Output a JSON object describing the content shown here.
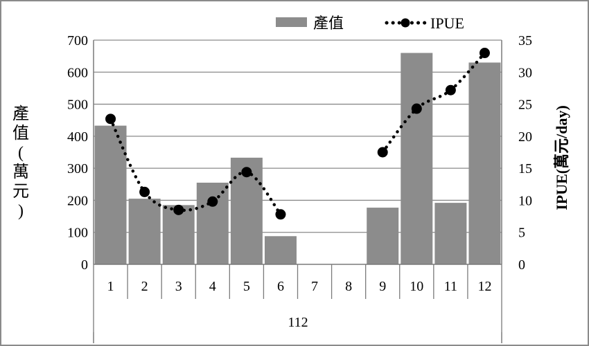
{
  "chart_data": {
    "type": "bar+line",
    "categories": [
      "1",
      "2",
      "3",
      "4",
      "5",
      "6",
      "7",
      "8",
      "9",
      "10",
      "11",
      "12"
    ],
    "group_label": "112",
    "series": [
      {
        "name": "產值",
        "type": "bar",
        "axis": "left",
        "values": [
          433,
          205,
          185,
          255,
          333,
          88,
          null,
          null,
          177,
          660,
          192,
          630
        ]
      },
      {
        "name": "IPUE",
        "type": "line",
        "axis": "right",
        "values": [
          22.7,
          11.3,
          8.5,
          9.8,
          14.4,
          7.8,
          null,
          null,
          17.5,
          24.3,
          27.2,
          33.0
        ]
      }
    ],
    "ylabel_left_chars": [
      "產",
      "值",
      "(",
      "萬",
      "元",
      ")"
    ],
    "ylabel_right": "IPUE(萬元/day)",
    "ylim_left": [
      0,
      700
    ],
    "ylim_right": [
      0,
      35
    ],
    "yticks_left": [
      0,
      100,
      200,
      300,
      400,
      500,
      600,
      700
    ],
    "yticks_right": [
      0,
      5,
      10,
      15,
      20,
      25,
      30,
      35
    ],
    "grid": true,
    "legend_position": "top-right",
    "colors": {
      "bar": "#8c8c8c",
      "line": "#000000",
      "grid": "#8a8a8a",
      "axis": "#7a7a7a"
    }
  }
}
